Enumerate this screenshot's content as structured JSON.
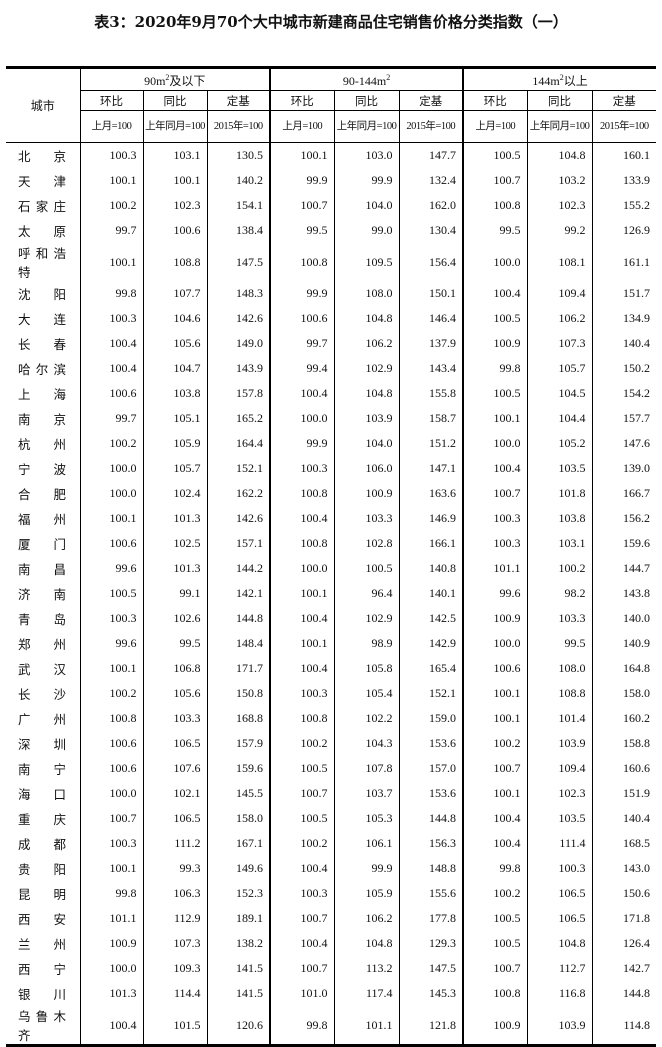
{
  "title": "表3：2020年9月70个大中城市新建商品住宅销售价格分类指数（一）",
  "header": {
    "city": "城市",
    "groups": [
      {
        "pre": "90m",
        "sup": "2",
        "post": "及以下"
      },
      {
        "pre": "90-144m",
        "sup": "2",
        "post": ""
      },
      {
        "pre": "144m",
        "sup": "2",
        "post": "以上"
      }
    ],
    "sub": [
      "环比",
      "同比",
      "定基"
    ],
    "base": [
      "上月=100",
      "上年同月=100",
      "2015年=100"
    ]
  },
  "rows": [
    {
      "city": "北京",
      "v": [
        "100.3",
        "103.1",
        "130.5",
        "100.1",
        "103.0",
        "147.7",
        "100.5",
        "104.8",
        "160.1"
      ]
    },
    {
      "city": "天津",
      "v": [
        "100.1",
        "100.1",
        "140.2",
        "99.9",
        "99.9",
        "132.4",
        "100.7",
        "103.2",
        "133.9"
      ]
    },
    {
      "city": "石家庄",
      "v": [
        "100.2",
        "102.3",
        "154.1",
        "100.7",
        "104.0",
        "162.0",
        "100.8",
        "102.3",
        "155.2"
      ]
    },
    {
      "city": "太原",
      "v": [
        "99.7",
        "100.6",
        "138.4",
        "99.5",
        "99.0",
        "130.4",
        "99.5",
        "99.2",
        "126.9"
      ]
    },
    {
      "city": "呼和浩特",
      "v": [
        "100.1",
        "108.8",
        "147.5",
        "100.8",
        "109.5",
        "156.4",
        "100.0",
        "108.1",
        "161.1"
      ]
    },
    {
      "city": "沈阳",
      "v": [
        "99.8",
        "107.7",
        "148.3",
        "99.9",
        "108.0",
        "150.1",
        "100.4",
        "109.4",
        "151.7"
      ]
    },
    {
      "city": "大连",
      "v": [
        "100.3",
        "104.6",
        "142.6",
        "100.6",
        "104.8",
        "146.4",
        "100.5",
        "106.2",
        "134.9"
      ]
    },
    {
      "city": "长春",
      "v": [
        "100.4",
        "105.6",
        "149.0",
        "99.7",
        "106.2",
        "137.9",
        "100.9",
        "107.3",
        "140.4"
      ]
    },
    {
      "city": "哈尔滨",
      "v": [
        "100.4",
        "104.7",
        "143.9",
        "99.4",
        "102.9",
        "143.4",
        "99.8",
        "105.7",
        "150.2"
      ]
    },
    {
      "city": "上海",
      "v": [
        "100.6",
        "103.8",
        "157.8",
        "100.4",
        "104.8",
        "155.8",
        "100.5",
        "104.5",
        "154.2"
      ]
    },
    {
      "city": "南京",
      "v": [
        "99.7",
        "105.1",
        "165.2",
        "100.0",
        "103.9",
        "158.7",
        "100.1",
        "104.4",
        "157.7"
      ]
    },
    {
      "city": "杭州",
      "v": [
        "100.2",
        "105.9",
        "164.4",
        "99.9",
        "104.0",
        "151.2",
        "100.0",
        "105.2",
        "147.6"
      ]
    },
    {
      "city": "宁波",
      "v": [
        "100.0",
        "105.7",
        "152.1",
        "100.3",
        "106.0",
        "147.1",
        "100.4",
        "103.5",
        "139.0"
      ]
    },
    {
      "city": "合肥",
      "v": [
        "100.0",
        "102.4",
        "162.2",
        "100.8",
        "100.9",
        "163.6",
        "100.7",
        "101.8",
        "166.7"
      ]
    },
    {
      "city": "福州",
      "v": [
        "100.1",
        "101.3",
        "142.6",
        "100.4",
        "103.3",
        "146.9",
        "100.3",
        "103.8",
        "156.2"
      ]
    },
    {
      "city": "厦门",
      "v": [
        "100.6",
        "102.5",
        "157.1",
        "100.8",
        "102.8",
        "166.1",
        "100.3",
        "103.1",
        "159.6"
      ]
    },
    {
      "city": "南昌",
      "v": [
        "99.6",
        "101.3",
        "144.2",
        "100.0",
        "100.5",
        "140.8",
        "101.1",
        "100.2",
        "144.7"
      ]
    },
    {
      "city": "济南",
      "v": [
        "100.5",
        "99.1",
        "142.1",
        "100.1",
        "96.4",
        "140.1",
        "99.6",
        "98.2",
        "143.8"
      ]
    },
    {
      "city": "青岛",
      "v": [
        "100.3",
        "102.6",
        "144.8",
        "100.4",
        "102.9",
        "142.5",
        "100.9",
        "103.3",
        "140.0"
      ]
    },
    {
      "city": "郑州",
      "v": [
        "99.6",
        "99.5",
        "148.4",
        "100.1",
        "98.9",
        "142.9",
        "100.0",
        "99.5",
        "140.9"
      ]
    },
    {
      "city": "武汉",
      "v": [
        "100.1",
        "106.8",
        "171.7",
        "100.4",
        "105.8",
        "165.4",
        "100.6",
        "108.0",
        "164.8"
      ]
    },
    {
      "city": "长沙",
      "v": [
        "100.2",
        "105.6",
        "150.8",
        "100.3",
        "105.4",
        "152.1",
        "100.1",
        "108.8",
        "158.0"
      ]
    },
    {
      "city": "广州",
      "v": [
        "100.8",
        "103.3",
        "168.8",
        "100.8",
        "102.2",
        "159.0",
        "100.1",
        "101.4",
        "160.2"
      ]
    },
    {
      "city": "深圳",
      "v": [
        "100.6",
        "106.5",
        "157.9",
        "100.2",
        "104.3",
        "153.6",
        "100.2",
        "103.9",
        "158.8"
      ]
    },
    {
      "city": "南宁",
      "v": [
        "100.6",
        "107.6",
        "159.6",
        "100.5",
        "107.8",
        "157.0",
        "100.7",
        "109.4",
        "160.6"
      ]
    },
    {
      "city": "海口",
      "v": [
        "100.0",
        "102.1",
        "145.5",
        "100.7",
        "103.7",
        "153.6",
        "100.1",
        "102.3",
        "151.9"
      ]
    },
    {
      "city": "重庆",
      "v": [
        "100.7",
        "106.5",
        "158.0",
        "100.5",
        "105.3",
        "144.8",
        "100.4",
        "103.5",
        "140.4"
      ]
    },
    {
      "city": "成都",
      "v": [
        "100.3",
        "111.2",
        "167.1",
        "100.2",
        "106.1",
        "156.3",
        "100.4",
        "111.4",
        "168.5"
      ]
    },
    {
      "city": "贵阳",
      "v": [
        "100.1",
        "99.3",
        "149.6",
        "100.4",
        "99.9",
        "148.8",
        "99.8",
        "100.3",
        "143.0"
      ]
    },
    {
      "city": "昆明",
      "v": [
        "99.8",
        "106.3",
        "152.3",
        "100.3",
        "105.9",
        "155.6",
        "100.2",
        "106.5",
        "150.6"
      ]
    },
    {
      "city": "西安",
      "v": [
        "101.1",
        "112.9",
        "189.1",
        "100.7",
        "106.2",
        "177.8",
        "100.5",
        "106.5",
        "171.8"
      ]
    },
    {
      "city": "兰州",
      "v": [
        "100.9",
        "107.3",
        "138.2",
        "100.4",
        "104.8",
        "129.3",
        "100.5",
        "104.8",
        "126.4"
      ]
    },
    {
      "city": "西宁",
      "v": [
        "100.0",
        "109.3",
        "141.5",
        "100.7",
        "113.2",
        "147.5",
        "100.7",
        "112.7",
        "142.7"
      ]
    },
    {
      "city": "银川",
      "v": [
        "101.3",
        "114.4",
        "141.5",
        "101.0",
        "117.4",
        "145.3",
        "100.8",
        "116.8",
        "144.8"
      ]
    },
    {
      "city": "乌鲁木齐",
      "v": [
        "100.4",
        "101.5",
        "120.6",
        "99.8",
        "101.1",
        "121.8",
        "100.9",
        "103.9",
        "114.8"
      ]
    }
  ]
}
